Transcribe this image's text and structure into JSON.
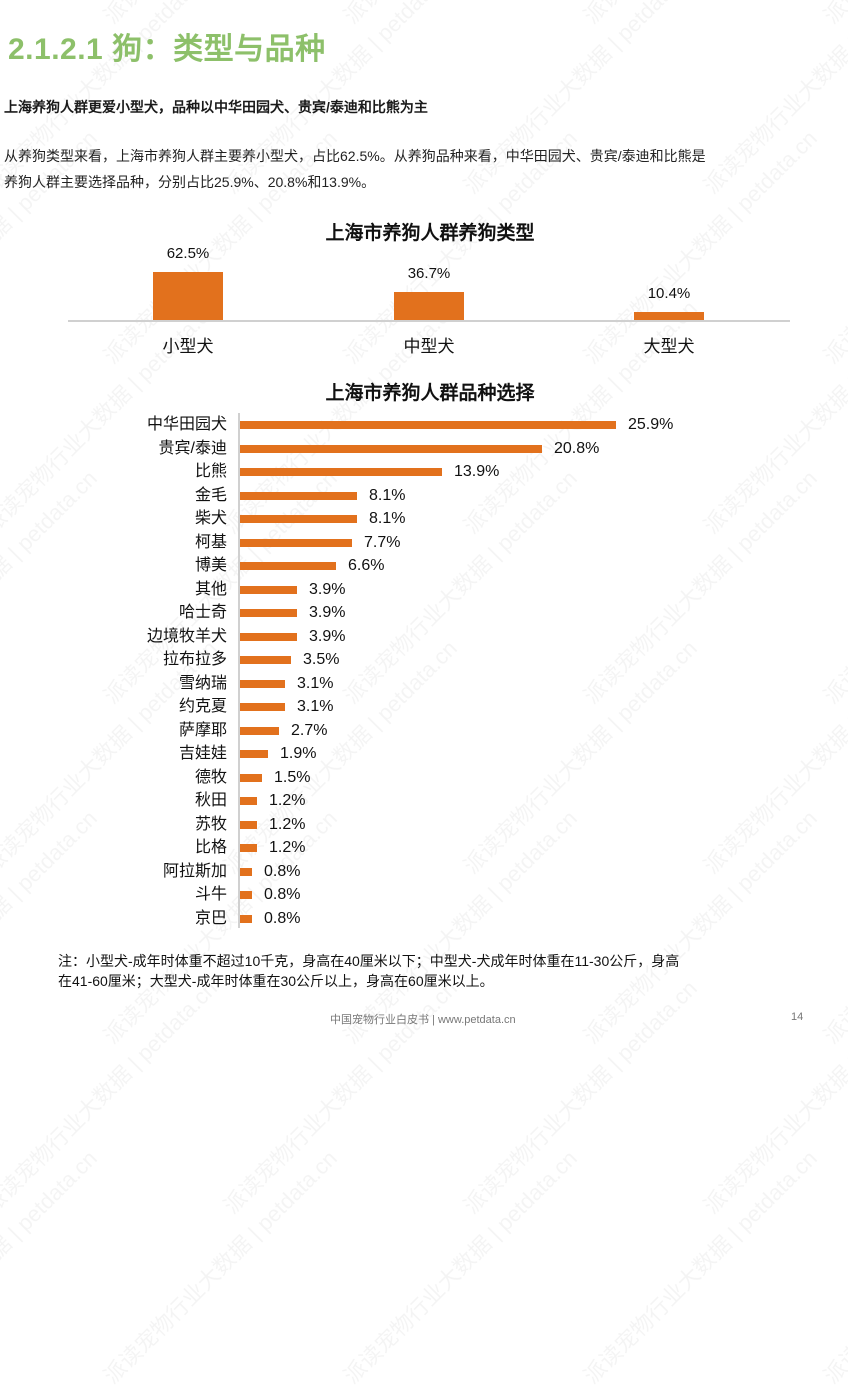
{
  "section_title": "2.1.2.1 狗：类型与品种",
  "subheading": "上海养狗人群更爱小型犬，品种以中华田园犬、贵宾/泰迪和比熊为主",
  "paragraph": {
    "line1": "从养狗类型来看，上海市养狗人群主要养小型犬，占比62.5%。从养狗品种来看，中华田园犬、贵宾/泰迪和比熊是",
    "line2": "养狗人群主要选择品种，分别占比25.9%、20.8%和13.9%。"
  },
  "colors": {
    "bar": "#E2711D",
    "title_green": "#8dc06a",
    "axis": "#d0d0d0"
  },
  "chart_data": [
    {
      "type": "bar",
      "title": "上海市养狗人群养狗类型",
      "categories": [
        "小型犬",
        "中型犬",
        "大型犬"
      ],
      "values": [
        62.5,
        36.7,
        10.4
      ],
      "labels": [
        "62.5%",
        "36.7%",
        "10.4%"
      ],
      "xlabel": "",
      "ylabel": "",
      "unit": "%",
      "grid": false,
      "legend": "none"
    },
    {
      "type": "bar",
      "orientation": "horizontal",
      "title": "上海市养狗人群品种选择",
      "categories": [
        "中华田园犬",
        "贵宾/泰迪",
        "比熊",
        "金毛",
        "柴犬",
        "柯基",
        "博美",
        "其他",
        "哈士奇",
        "边境牧羊犬",
        "拉布拉多",
        "雪纳瑞",
        "约克夏",
        "萨摩耶",
        "吉娃娃",
        "德牧",
        "秋田",
        "苏牧",
        "比格",
        "阿拉斯加",
        "斗牛",
        "京巴"
      ],
      "values": [
        25.9,
        20.8,
        13.9,
        8.1,
        8.1,
        7.7,
        6.6,
        3.9,
        3.9,
        3.9,
        3.5,
        3.1,
        3.1,
        2.7,
        1.9,
        1.5,
        1.2,
        1.2,
        1.2,
        0.8,
        0.8,
        0.8
      ],
      "labels": [
        "25.9%",
        "20.8%",
        "13.9%",
        "8.1%",
        "8.1%",
        "7.7%",
        "6.6%",
        "3.9%",
        "3.9%",
        "3.9%",
        "3.5%",
        "3.1%",
        "3.1%",
        "2.7%",
        "1.9%",
        "1.5%",
        "1.2%",
        "1.2%",
        "1.2%",
        "0.8%",
        "0.8%",
        "0.8%"
      ],
      "xlabel": "",
      "ylabel": "",
      "unit": "%",
      "grid": false,
      "legend": "none"
    }
  ],
  "note": {
    "line1": "注：小型犬-成年时体重不超过10千克，身高在40厘米以下；中型犬-犬成年时体重在11-30公斤，身高",
    "line2": "在41-60厘米；大型犬-成年时体重在30公斤以上，身高在60厘米以上。"
  },
  "footer": {
    "text": "中国宠物行业白皮书 | www.petdata.cn",
    "page": "14"
  },
  "watermark": "派读宠物行业大数据 | petdata.cn"
}
